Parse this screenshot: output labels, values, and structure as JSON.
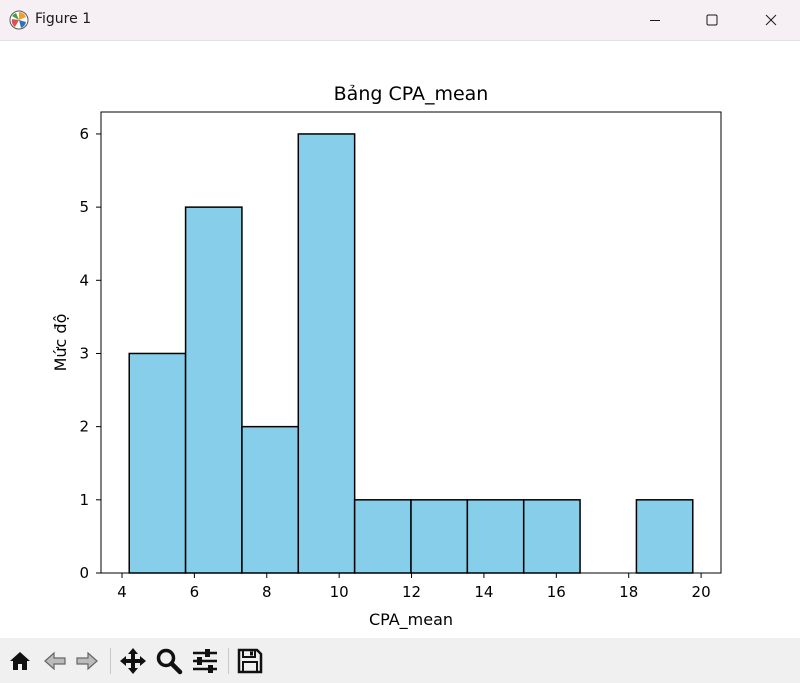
{
  "window": {
    "title": "Figure 1",
    "icons": [
      "matplotlib-logo-icon",
      "minimize-icon",
      "maximize-icon",
      "close-icon"
    ]
  },
  "toolbar": {
    "buttons": [
      "home-icon",
      "back-icon",
      "forward-icon",
      "pan-icon",
      "zoom-icon",
      "configure-subplots-icon",
      "save-icon"
    ]
  },
  "colors": {
    "bar_fill": "#87ceeb",
    "bar_edge": "#000000",
    "axes": "#000000",
    "titlebar": "#f6eff3",
    "toolbar": "#f0f0f0"
  },
  "chart_data": {
    "type": "bar",
    "title": "Bảng CPA_mean",
    "xlabel": "CPA_mean",
    "ylabel": "Mức độ",
    "bin_edges": [
      4.2,
      5.757,
      7.314,
      8.871,
      10.428,
      11.985,
      13.542,
      15.099,
      16.656,
      18.213,
      19.77
    ],
    "values": [
      3,
      5,
      2,
      6,
      1,
      1,
      1,
      1,
      0,
      1
    ],
    "xlim": [
      3.42,
      20.55
    ],
    "ylim": [
      0,
      6.3
    ],
    "xticks": [
      4,
      6,
      8,
      10,
      12,
      14,
      16,
      18,
      20
    ],
    "yticks": [
      0,
      1,
      2,
      3,
      4,
      5,
      6
    ],
    "grid": false,
    "legend": "none"
  }
}
